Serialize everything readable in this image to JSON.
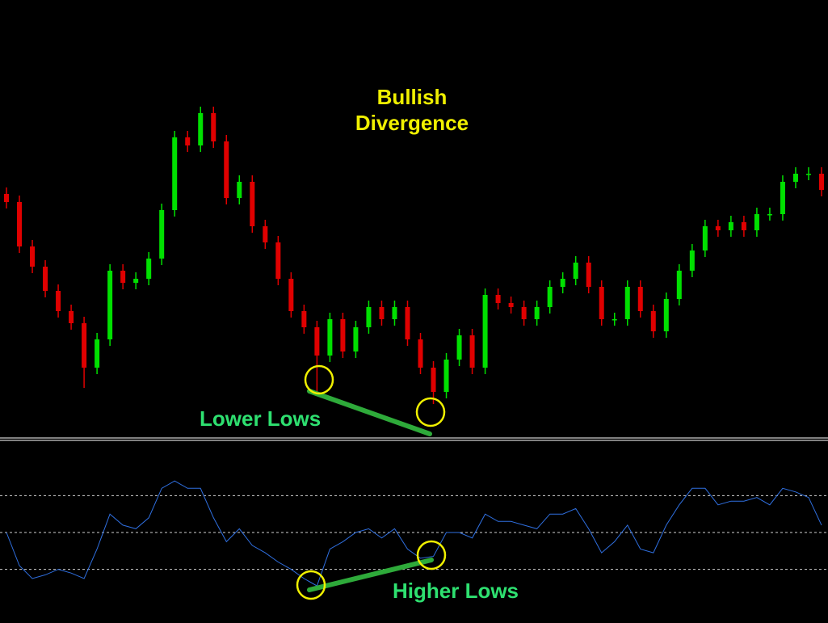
{
  "chart_data": [
    {
      "type": "candlestick",
      "title": "Bullish Divergence",
      "annotation": "Lower Lows",
      "up_color": "#00e000",
      "down_color": "#e00000",
      "ylim": [
        0,
        540
      ],
      "opens": [
        300,
        290,
        235,
        210,
        180,
        155,
        140,
        85,
        120,
        205,
        190,
        195,
        220,
        280,
        370,
        360,
        400,
        365,
        295,
        315,
        260,
        240,
        195,
        155,
        135,
        100,
        145,
        105,
        135,
        160,
        145,
        160,
        120,
        85,
        55,
        95,
        125,
        85,
        175,
        165,
        160,
        145,
        160,
        185,
        195,
        215,
        185,
        145,
        145,
        185,
        155,
        130,
        170,
        205,
        230,
        260,
        255,
        265,
        255,
        275,
        275,
        315,
        325,
        325
      ],
      "highs": [
        308,
        298,
        243,
        218,
        188,
        163,
        148,
        128,
        213,
        213,
        203,
        228,
        288,
        378,
        378,
        408,
        408,
        373,
        323,
        323,
        268,
        248,
        203,
        163,
        143,
        153,
        153,
        143,
        168,
        168,
        168,
        168,
        128,
        93,
        103,
        133,
        133,
        183,
        183,
        173,
        168,
        168,
        193,
        203,
        223,
        223,
        193,
        153,
        193,
        193,
        163,
        178,
        213,
        238,
        268,
        268,
        273,
        273,
        283,
        283,
        323,
        333,
        333,
        333
      ],
      "lows": [
        282,
        227,
        202,
        172,
        147,
        132,
        60,
        77,
        112,
        182,
        182,
        187,
        212,
        272,
        352,
        352,
        357,
        287,
        287,
        252,
        232,
        187,
        147,
        127,
        55,
        92,
        97,
        97,
        127,
        137,
        137,
        112,
        77,
        40,
        47,
        87,
        77,
        77,
        157,
        152,
        137,
        137,
        152,
        177,
        187,
        177,
        137,
        137,
        137,
        147,
        122,
        122,
        162,
        197,
        222,
        247,
        247,
        247,
        247,
        267,
        267,
        307,
        317,
        297
      ],
      "closes": [
        290,
        235,
        210,
        180,
        155,
        140,
        85,
        120,
        205,
        190,
        195,
        220,
        280,
        370,
        360,
        400,
        365,
        295,
        315,
        260,
        240,
        195,
        155,
        135,
        100,
        145,
        105,
        135,
        160,
        145,
        160,
        120,
        85,
        55,
        95,
        125,
        85,
        175,
        165,
        160,
        145,
        160,
        185,
        195,
        215,
        185,
        145,
        145,
        185,
        155,
        130,
        170,
        205,
        230,
        260,
        255,
        265,
        255,
        275,
        275,
        315,
        325,
        325,
        305
      ]
    },
    {
      "type": "line",
      "annotation": "Higher Lows",
      "color": "#2f6fe0",
      "level_color": "#cfcfcf",
      "ylim": [
        0,
        100
      ],
      "levels": [
        30,
        50,
        70
      ],
      "values": [
        50,
        32,
        25,
        27,
        30,
        28,
        25,
        41,
        60,
        54,
        52,
        58,
        74,
        78,
        74,
        74,
        58,
        45,
        52,
        43,
        39,
        34,
        30,
        25,
        21,
        41,
        45,
        50,
        52,
        47,
        52,
        41,
        36,
        37,
        50,
        50,
        47,
        60,
        56,
        56,
        54,
        52,
        60,
        60,
        63,
        52,
        39,
        45,
        54,
        41,
        39,
        54,
        65,
        74,
        74,
        65,
        67,
        67,
        69,
        65,
        74,
        72,
        69,
        54
      ]
    }
  ]
}
